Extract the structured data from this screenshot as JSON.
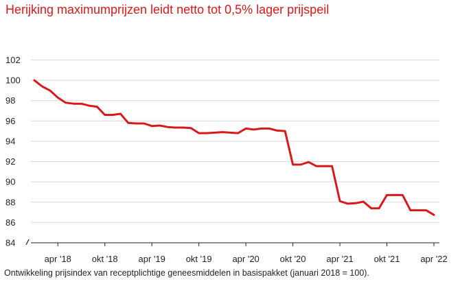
{
  "title": "Herijking maximumprijzen leidt netto tot 0,5% lager prijspeil",
  "caption": "Ontwikkeling prijsindex van receptplichtige geneesmiddelen in basispakket (januari 2018 = 100).",
  "colors": {
    "title": "#d7191c",
    "line": "#d7191c",
    "grid": "#d9d9d9",
    "axis": "#222222"
  },
  "chart_data": {
    "type": "line",
    "title": "Herijking maximumprijzen leidt netto tot 0,5% lager prijspeil",
    "xlabel": "",
    "ylabel": "",
    "ylim": [
      84,
      102
    ],
    "yticks": [
      84,
      86,
      88,
      90,
      92,
      94,
      96,
      98,
      100,
      102
    ],
    "xtick_labels": [
      "apr '18",
      "okt '18",
      "apr '19",
      "okt '19",
      "apr '20",
      "okt '20",
      "apr '21",
      "okt '21",
      "apr '22"
    ],
    "xtick_positions": [
      "2018-04",
      "2018-10",
      "2019-04",
      "2019-10",
      "2020-04",
      "2020-10",
      "2021-04",
      "2021-10",
      "2022-04"
    ],
    "grid": "horizontal",
    "x": [
      "2018-01",
      "2018-02",
      "2018-03",
      "2018-04",
      "2018-05",
      "2018-06",
      "2018-07",
      "2018-08",
      "2018-09",
      "2018-10",
      "2018-11",
      "2018-12",
      "2019-01",
      "2019-02",
      "2019-03",
      "2019-04",
      "2019-05",
      "2019-06",
      "2019-07",
      "2019-08",
      "2019-09",
      "2019-10",
      "2019-11",
      "2019-12",
      "2020-01",
      "2020-02",
      "2020-03",
      "2020-04",
      "2020-05",
      "2020-06",
      "2020-07",
      "2020-08",
      "2020-09",
      "2020-10",
      "2020-11",
      "2020-12",
      "2021-01",
      "2021-02",
      "2021-03",
      "2021-04",
      "2021-05",
      "2021-06",
      "2021-07",
      "2021-08",
      "2021-09",
      "2021-10",
      "2021-11",
      "2021-12",
      "2022-01",
      "2022-02",
      "2022-03",
      "2022-04"
    ],
    "series": [
      {
        "values": [
          100.0,
          99.4,
          99.0,
          98.3,
          97.8,
          97.7,
          97.7,
          97.5,
          97.4,
          96.6,
          96.6,
          96.7,
          95.8,
          95.75,
          95.75,
          95.5,
          95.55,
          95.4,
          95.35,
          95.35,
          95.3,
          94.8,
          94.8,
          94.85,
          94.9,
          94.85,
          94.8,
          95.25,
          95.15,
          95.25,
          95.25,
          95.05,
          95.0,
          91.7,
          91.7,
          91.95,
          91.55,
          91.55,
          91.55,
          88.1,
          87.85,
          87.9,
          88.05,
          87.4,
          87.4,
          88.7,
          88.7,
          88.7,
          87.2,
          87.2,
          87.2,
          86.75
        ]
      }
    ]
  }
}
